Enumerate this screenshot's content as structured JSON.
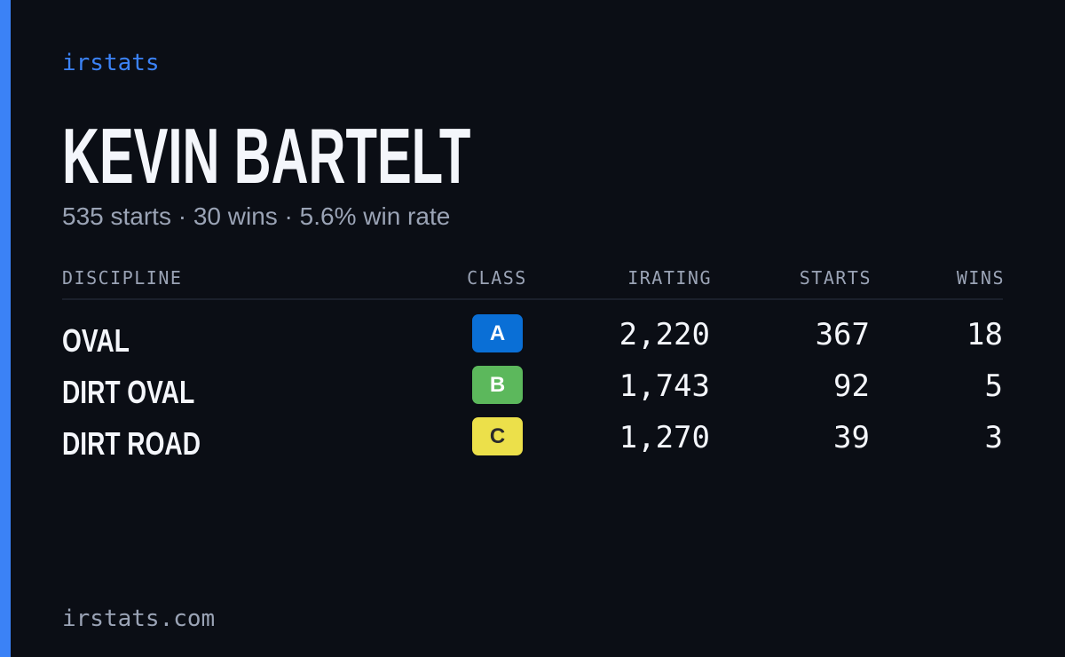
{
  "brand": "irstats",
  "driver": {
    "name": "KEVIN BARTELT",
    "summary": "535 starts · 30 wins · 5.6% win rate"
  },
  "table": {
    "headers": [
      "DISCIPLINE",
      "CLASS",
      "IRATING",
      "STARTS",
      "WINS"
    ],
    "rows": [
      [
        "OVAL",
        "A",
        "2,220",
        "367",
        "18"
      ],
      [
        "DIRT OVAL",
        "B",
        "1,743",
        "92",
        "5"
      ],
      [
        "DIRT ROAD",
        "C",
        "1,270",
        "39",
        "3"
      ]
    ]
  },
  "footer": "irstats.com"
}
